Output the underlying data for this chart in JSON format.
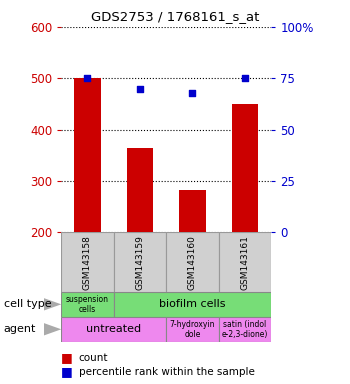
{
  "title": "GDS2753 / 1768161_s_at",
  "samples": [
    "GSM143158",
    "GSM143159",
    "GSM143160",
    "GSM143161"
  ],
  "counts": [
    500,
    365,
    283,
    450
  ],
  "percentile_ranks": [
    75,
    70,
    68,
    75
  ],
  "ylim_left": [
    200,
    600
  ],
  "ylim_right": [
    0,
    100
  ],
  "yticks_left": [
    200,
    300,
    400,
    500,
    600
  ],
  "yticks_right": [
    0,
    25,
    50,
    75,
    100
  ],
  "bar_color": "#cc0000",
  "dot_color": "#0000cc",
  "bar_width": 0.5,
  "cell_type_colors": [
    "#77dd77",
    "#77dd77"
  ],
  "agent_color_untreated": "#ee88ee",
  "agent_color_other": "#ee88ee",
  "grid_linestyle": "dotted",
  "tick_color_left": "#cc0000",
  "tick_color_right": "#0000cc",
  "background_color": "#ffffff",
  "plot_bg": "#ffffff",
  "sample_box_color": "#d0d0d0",
  "cell_type_row_label": "cell type",
  "agent_row_label": "agent",
  "legend_count_label": "count",
  "legend_percentile_label": "percentile rank within the sample",
  "suspension_label": "suspension\ncells",
  "biofilm_label": "biofilm cells",
  "untreated_label": "untreated",
  "agent2_label": "7-hydroxyin\ndole",
  "agent3_label": "satin (indol\ne-2,3-dione)"
}
